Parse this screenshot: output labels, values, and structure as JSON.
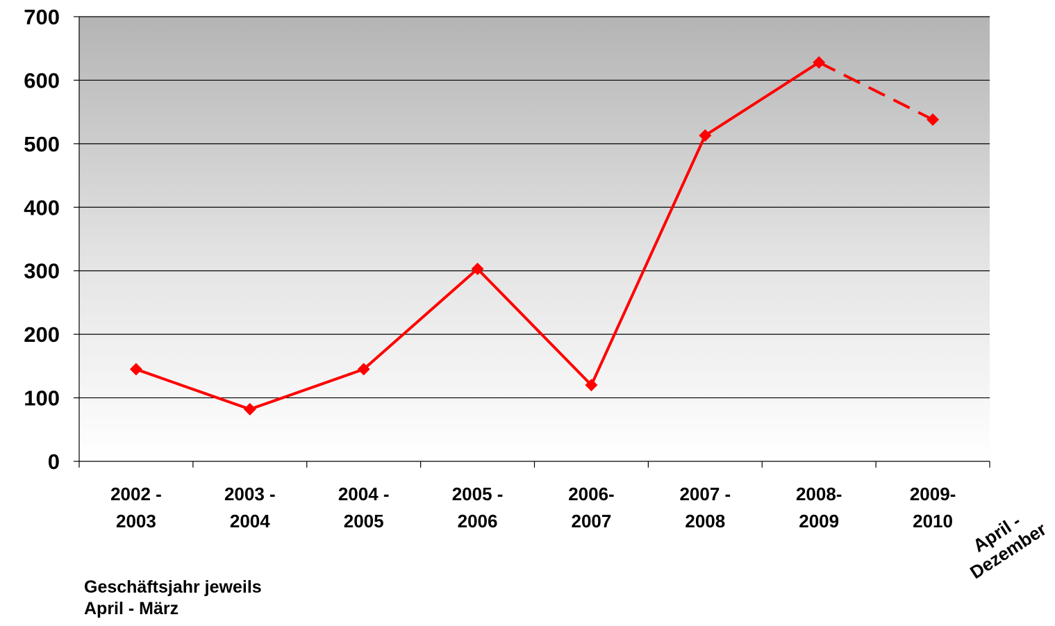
{
  "chart_data": {
    "type": "line",
    "categories": [
      [
        "2002 -",
        "2003"
      ],
      [
        "2003 -",
        "2004"
      ],
      [
        "2004 -",
        "2005"
      ],
      [
        "2005 -",
        "2006"
      ],
      [
        "2006-",
        "2007"
      ],
      [
        "2007 -",
        "2008"
      ],
      [
        "2008-",
        "2009"
      ],
      [
        "2009-",
        "2010"
      ]
    ],
    "series": [
      {
        "values": [
          145,
          82,
          145,
          303,
          120,
          513,
          628,
          538
        ],
        "color": "#ff0000",
        "marker": "diamond",
        "dashed_last_segment": true
      }
    ],
    "ylim": [
      0,
      700
    ],
    "yticks": [
      0,
      100,
      200,
      300,
      400,
      500,
      600,
      700
    ],
    "grid": true,
    "background": "vertical gradient grey to white",
    "annotations": {
      "partial_period": [
        "April -",
        "Dezember"
      ],
      "note_line1": "Geschäftsjahr jeweils",
      "note_line2": "April - März"
    }
  }
}
